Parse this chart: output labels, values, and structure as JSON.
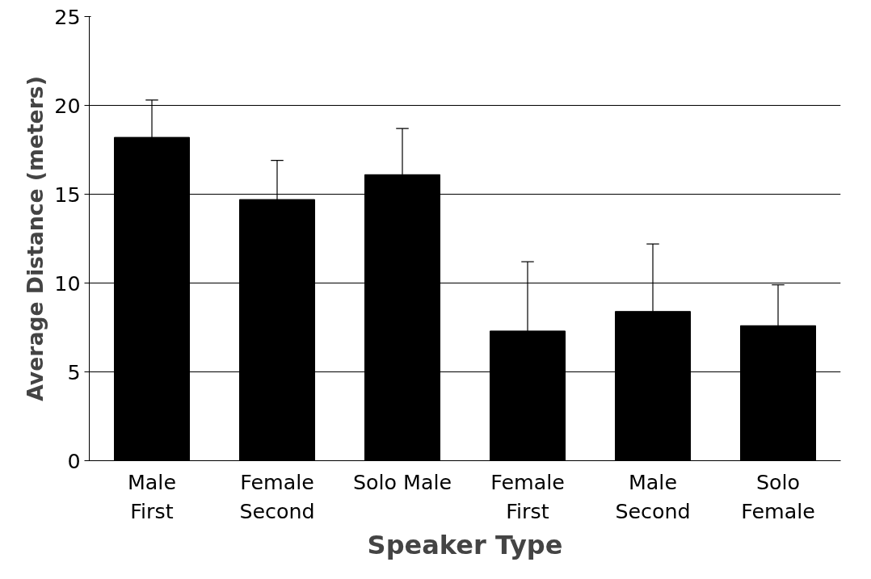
{
  "chart_data": {
    "type": "bar",
    "xlabel": "Speaker Type",
    "ylabel": "Average Distance (meters)",
    "categories": [
      "Male\nFirst",
      "Female\nSecond",
      "Solo Male",
      "Female\nFirst",
      "Male\nSecond",
      "Solo\nFemale"
    ],
    "values": [
      18.2,
      14.7,
      16.1,
      7.3,
      8.4,
      7.6
    ],
    "errors": [
      [
        18.2,
        20.3
      ],
      [
        14.7,
        16.9
      ],
      [
        16.1,
        18.7
      ],
      [
        7.3,
        11.2
      ],
      [
        8.4,
        12.2
      ],
      [
        7.6,
        9.9
      ]
    ],
    "color": "#000000",
    "ylim": [
      0,
      25
    ],
    "yticks": [
      0,
      5,
      10,
      15,
      20,
      25
    ],
    "grid": "y"
  }
}
